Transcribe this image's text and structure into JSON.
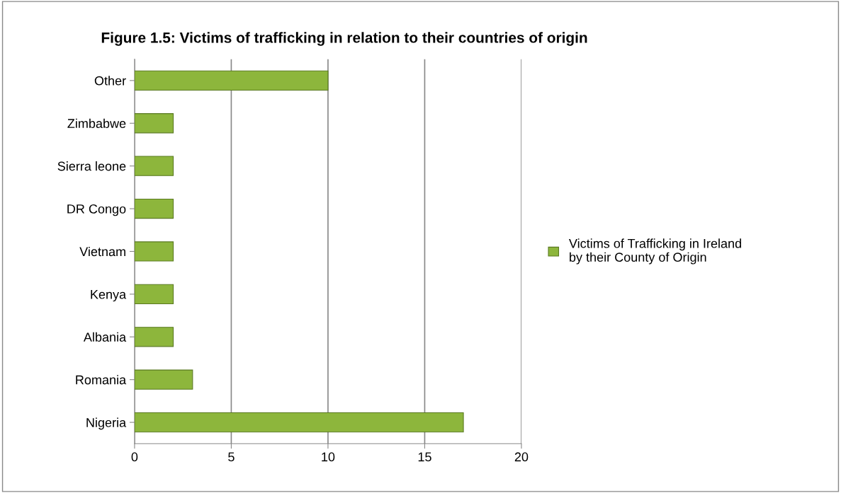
{
  "chart_data": {
    "type": "bar",
    "orientation": "horizontal",
    "title": "Figure 1.5: Victims of trafficking in relation to their countries of origin",
    "categories": [
      "Other",
      "Zimbabwe",
      "Sierra leone",
      "DR Congo",
      "Vietnam",
      "Kenya",
      "Albania",
      "Romania",
      "Nigeria"
    ],
    "series": [
      {
        "name": "Victims of Trafficking in Ireland\nby their County of Origin",
        "color": "#8db63c",
        "values": [
          10,
          2,
          2,
          2,
          2,
          2,
          2,
          3,
          17
        ]
      }
    ],
    "xlim": [
      0,
      20
    ],
    "xticks": [
      0,
      5,
      10,
      15,
      20
    ],
    "grid": "x",
    "legend": "right"
  }
}
